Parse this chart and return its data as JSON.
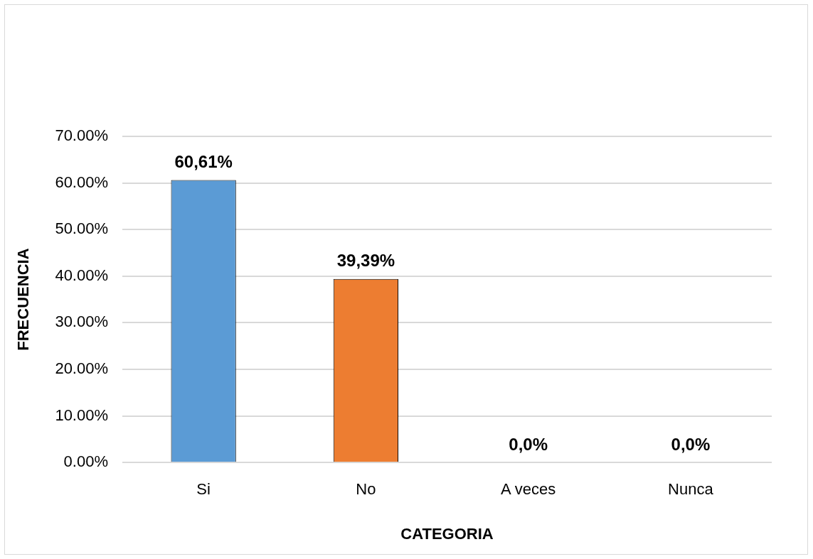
{
  "chart_data": {
    "type": "bar",
    "xlabel": "CATEGORIA",
    "ylabel": "FRECUENCIA",
    "categories": [
      "Si",
      "No",
      "A veces",
      "Nunca"
    ],
    "values": [
      60.61,
      39.39,
      0,
      0
    ],
    "colors": [
      "#5b9bd5",
      "#ed7d31",
      "#5b2c83",
      "#00843d"
    ],
    "value_labels": [
      "60,61%",
      "39,39%",
      "0,0%",
      "0,0%"
    ],
    "ylim": [
      0,
      70
    ],
    "yticks": [
      {
        "value": 0,
        "label": "0.00%"
      },
      {
        "value": 10,
        "label": "10.00%"
      },
      {
        "value": 20,
        "label": "20.00%"
      },
      {
        "value": 30,
        "label": "30.00%"
      },
      {
        "value": 40,
        "label": "40.00%"
      },
      {
        "value": 50,
        "label": "50.00%"
      },
      {
        "value": 60,
        "label": "60.00%"
      },
      {
        "value": 70,
        "label": "70.00%"
      }
    ],
    "grid": "y",
    "legend": false
  }
}
